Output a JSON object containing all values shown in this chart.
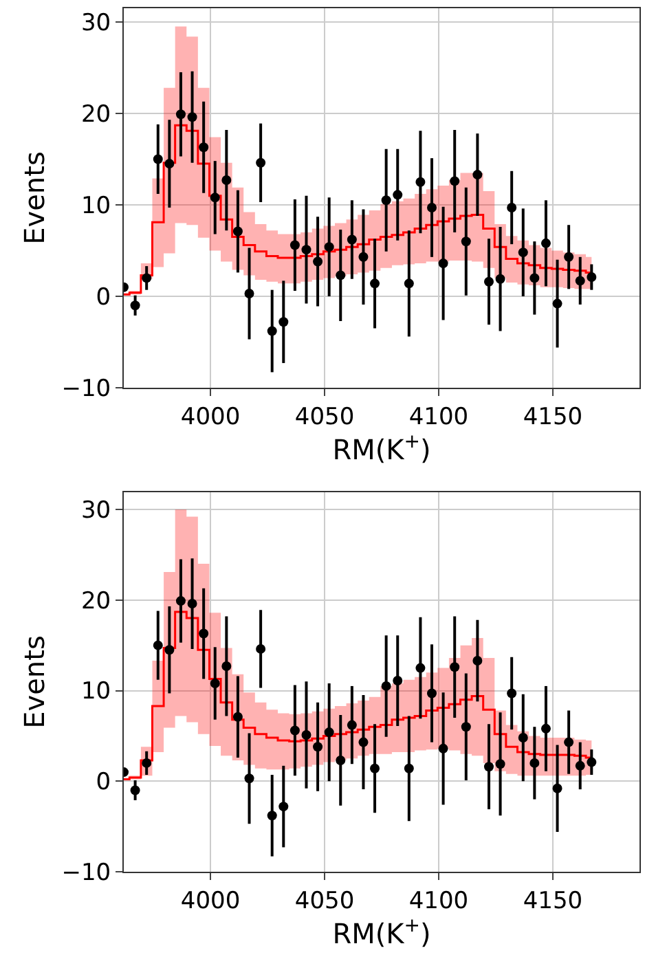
{
  "chart_data": [
    {
      "type": "step",
      "xlabel": "RM(K$^{+}$)",
      "ylabel": "Events",
      "grid": true,
      "x": [
        3962,
        3967,
        3972,
        3977,
        3982,
        3987,
        3992,
        3997,
        4002,
        4007,
        4012,
        4017,
        4022,
        4027,
        4032,
        4037,
        4042,
        4047,
        4052,
        4057,
        4062,
        4067,
        4072,
        4077,
        4082,
        4087,
        4092,
        4097,
        4102,
        4107,
        4112,
        4117,
        4122,
        4127,
        4132,
        4137,
        4142,
        4147,
        4152,
        4157,
        4162,
        4167
      ],
      "xlim": [
        3962,
        4188
      ],
      "xticks": [
        4000,
        4050,
        4100,
        4150
      ],
      "ylim": [
        -10,
        31.5
      ],
      "yticks": [
        {
          "value": -10,
          "label": "−10"
        },
        0,
        10,
        20,
        30
      ],
      "series": [
        {
          "color": "#ff0000",
          "line_style": "solid",
          "marker": "none",
          "values": [
            0.2,
            0.4,
            2.3,
            8.1,
            14.6,
            18.7,
            18.1,
            14.5,
            11.0,
            8.4,
            6.5,
            5.6,
            4.9,
            4.4,
            4.2,
            4.2,
            4.4,
            4.6,
            4.9,
            5.1,
            5.4,
            5.7,
            6.2,
            6.5,
            6.7,
            7.0,
            7.4,
            7.8,
            8.2,
            8.5,
            8.8,
            8.9,
            7.4,
            5.4,
            4.1,
            3.6,
            3.4,
            3.1,
            3.0,
            2.9,
            2.8,
            2.6
          ],
          "lower": [
            0.1,
            0.2,
            1.9,
            3.2,
            4.7,
            8.0,
            7.8,
            6.4,
            5.0,
            3.8,
            2.9,
            2.3,
            1.8,
            1.6,
            1.4,
            1.4,
            1.6,
            1.8,
            2.0,
            2.2,
            2.4,
            2.6,
            2.8,
            3.1,
            3.4,
            3.5,
            3.6,
            3.8,
            3.8,
            3.9,
            3.9,
            3.8,
            3.1,
            2.0,
            1.5,
            1.3,
            1.2,
            1.0,
            1.0,
            0.9,
            0.8,
            0.8
          ],
          "upper": [
            0.3,
            0.6,
            3.6,
            12.9,
            22.8,
            29.5,
            28.4,
            22.8,
            17.4,
            14.6,
            11.9,
            9.2,
            7.9,
            7.2,
            6.8,
            6.8,
            7.0,
            7.4,
            7.7,
            8.0,
            8.4,
            8.9,
            9.4,
            10.1,
            10.4,
            10.7,
            11.2,
            11.7,
            12.1,
            12.7,
            13.5,
            13.5,
            11.5,
            7.9,
            6.6,
            6.1,
            5.6,
            5.3,
            5.0,
            4.8,
            4.6,
            4.3
          ]
        },
        {
          "type": "scatter",
          "color": "#000000",
          "marker": "circle",
          "values": [
            1.0,
            -1.0,
            2.0,
            15.0,
            14.5,
            19.9,
            19.6,
            16.3,
            10.8,
            12.7,
            7.1,
            0.3,
            14.6,
            -3.8,
            -2.8,
            5.6,
            5.1,
            3.8,
            5.4,
            2.3,
            6.2,
            4.3,
            1.4,
            10.5,
            11.1,
            1.4,
            12.5,
            9.7,
            3.6,
            12.6,
            6.0,
            13.3,
            1.6,
            1.9,
            9.7,
            4.8,
            2.0,
            5.8,
            -0.8,
            4.3,
            1.7,
            2.1
          ],
          "errors": [
            null,
            1.1,
            1.3,
            3.8,
            4.8,
            4.6,
            5.0,
            5.0,
            4.0,
            5.5,
            4.5,
            5.0,
            4.3,
            4.5,
            4.5,
            5.0,
            5.9,
            4.9,
            5.4,
            5.0,
            4.3,
            5.2,
            4.9,
            5.6,
            5.0,
            5.8,
            5.6,
            5.4,
            6.2,
            5.6,
            5.9,
            4.5,
            4.7,
            5.7,
            4.0,
            4.8,
            4.0,
            4.7,
            4.8,
            3.5,
            2.6,
            1.4
          ]
        }
      ]
    },
    {
      "type": "step",
      "xlabel": "RM(K$^{+}$)",
      "ylabel": "Events",
      "grid": true,
      "x": [
        3962,
        3967,
        3972,
        3977,
        3982,
        3987,
        3992,
        3997,
        4002,
        4007,
        4012,
        4017,
        4022,
        4027,
        4032,
        4037,
        4042,
        4047,
        4052,
        4057,
        4062,
        4067,
        4072,
        4077,
        4082,
        4087,
        4092,
        4097,
        4102,
        4107,
        4112,
        4117,
        4122,
        4127,
        4132,
        4137,
        4142,
        4147,
        4152,
        4157,
        4162,
        4167
      ],
      "xlim": [
        3962,
        4188
      ],
      "xticks": [
        4000,
        4050,
        4100,
        4150
      ],
      "ylim": [
        -10,
        31.9
      ],
      "yticks": [
        {
          "value": -10,
          "label": "−10"
        },
        0,
        10,
        20,
        30
      ],
      "series": [
        {
          "color": "#ff0000",
          "line_style": "solid",
          "marker": "none",
          "values": [
            0.2,
            0.4,
            2.3,
            8.3,
            14.7,
            18.7,
            18.0,
            14.5,
            11.3,
            8.7,
            6.8,
            5.9,
            5.2,
            4.8,
            4.5,
            4.4,
            4.5,
            4.7,
            5.0,
            5.2,
            5.4,
            5.7,
            6.0,
            6.2,
            6.8,
            7.0,
            7.2,
            7.8,
            8.1,
            8.5,
            9.0,
            9.4,
            7.9,
            5.2,
            3.8,
            3.2,
            3.0,
            2.9,
            2.9,
            2.9,
            2.8,
            2.6
          ],
          "lower": [
            0.1,
            0.2,
            0.6,
            3.2,
            5.9,
            7.2,
            6.5,
            5.2,
            3.9,
            2.8,
            2.3,
            1.8,
            1.4,
            1.3,
            1.3,
            1.4,
            1.6,
            1.8,
            2.1,
            2.3,
            2.5,
            2.8,
            3.0,
            3.0,
            3.2,
            3.2,
            3.4,
            3.5,
            3.6,
            3.4,
            3.0,
            2.8,
            2.0,
            1.1,
            0.8,
            0.6,
            0.6,
            0.6,
            0.6,
            0.6,
            0.6,
            0.7
          ],
          "upper": [
            0.3,
            0.6,
            3.8,
            13.3,
            23.1,
            30.0,
            29.2,
            24.0,
            18.6,
            14.7,
            11.8,
            9.8,
            8.7,
            7.9,
            7.5,
            7.4,
            7.5,
            7.7,
            8.0,
            8.3,
            8.6,
            8.9,
            9.3,
            10.5,
            10.8,
            11.2,
            11.5,
            12.0,
            12.5,
            13.6,
            15.0,
            15.8,
            13.6,
            7.8,
            6.2,
            5.5,
            5.0,
            4.8,
            4.8,
            4.8,
            4.6,
            4.5
          ]
        },
        {
          "type": "scatter",
          "color": "#000000",
          "marker": "circle",
          "values": [
            1.0,
            -1.0,
            2.0,
            15.0,
            14.5,
            19.9,
            19.6,
            16.3,
            10.8,
            12.7,
            7.1,
            0.3,
            14.6,
            -3.8,
            -2.8,
            5.6,
            5.1,
            3.8,
            5.4,
            2.3,
            6.2,
            4.3,
            1.4,
            10.5,
            11.1,
            1.4,
            12.5,
            9.7,
            3.6,
            12.6,
            6.0,
            13.3,
            1.6,
            1.9,
            9.7,
            4.8,
            2.0,
            5.8,
            -0.8,
            4.3,
            1.7,
            2.1
          ],
          "errors": [
            null,
            1.1,
            1.3,
            3.8,
            4.8,
            4.6,
            5.0,
            5.0,
            4.0,
            5.5,
            4.5,
            5.0,
            4.3,
            4.5,
            4.5,
            5.0,
            5.9,
            4.9,
            5.4,
            5.0,
            4.3,
            5.2,
            4.9,
            5.6,
            5.0,
            5.8,
            5.6,
            5.4,
            6.2,
            5.6,
            5.9,
            4.5,
            4.7,
            5.7,
            4.0,
            4.8,
            4.0,
            4.7,
            4.8,
            3.5,
            2.6,
            1.4
          ]
        }
      ]
    }
  ]
}
